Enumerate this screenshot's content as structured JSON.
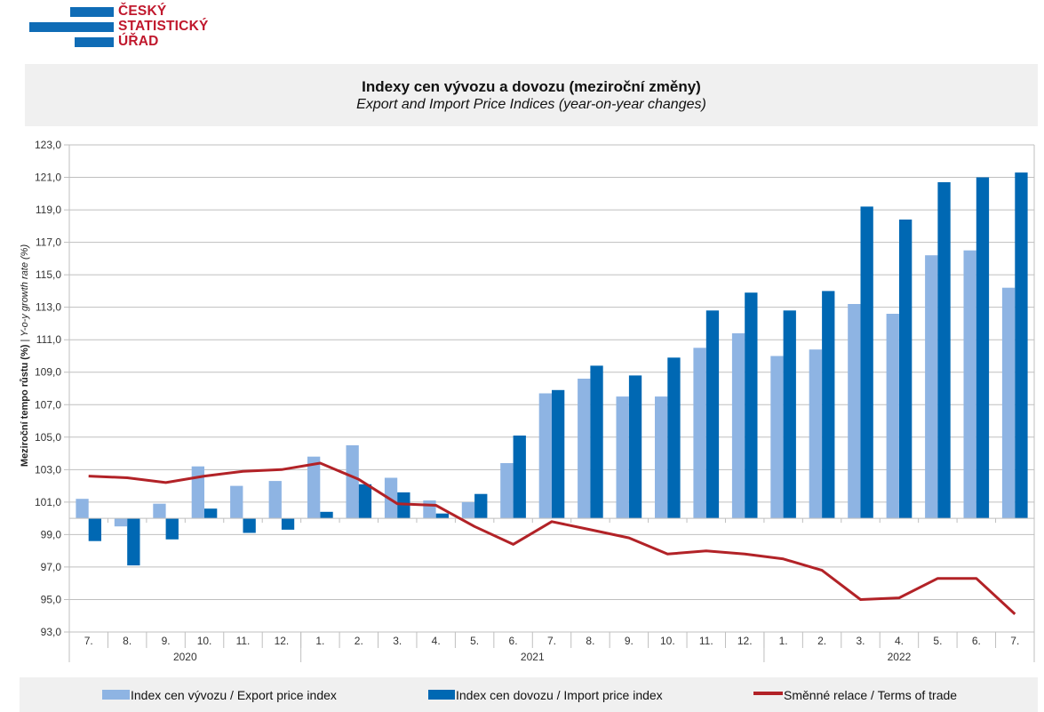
{
  "logo": {
    "lines": [
      "ČESKÝ",
      "STATISTICKÝ",
      "ÚŘAD"
    ],
    "bar_color": "#0f6cb6",
    "text_color": "#c0182d"
  },
  "header": {
    "title_cs": "Indexy cen vývozu a dovozu (meziroční změny)",
    "title_en": "Export and Import Price Indices (year-on-year changes)"
  },
  "legend": {
    "export": "Index cen vývozu / Export price index",
    "import": "Index cen dovozu / Import price index",
    "tot": "Směnné relace / Terms of trade"
  },
  "colors": {
    "export": "#8eb4e3",
    "import": "#0068b3",
    "tot": "#b22227",
    "grid": "#bfbfbf"
  },
  "chart_data": {
    "type": "bar",
    "title": "Indexy cen vývozu a dovozu (meziroční změny) / Export and Import Price Indices (year-on-year changes)",
    "xlabel": "",
    "ylabel_cs": "Meziroční tempo růstu (%)",
    "ylabel_en": "Y-o-y growth rate (%)",
    "ylim": [
      93.0,
      123.0
    ],
    "y_ticks": [
      "93,0",
      "95,0",
      "97,0",
      "99,0",
      "101,0",
      "103,0",
      "105,0",
      "107,0",
      "109,0",
      "111,0",
      "113,0",
      "115,0",
      "117,0",
      "119,0",
      "121,0",
      "123,0"
    ],
    "baseline": 100,
    "grid": true,
    "legend_position": "bottom",
    "categories": [
      "7.",
      "8.",
      "9.",
      "10.",
      "11.",
      "12.",
      "1.",
      "2.",
      "3.",
      "4.",
      "5.",
      "6.",
      "7.",
      "8.",
      "9.",
      "10.",
      "11.",
      "12.",
      "1.",
      "2.",
      "3.",
      "4.",
      "5.",
      "6.",
      "7."
    ],
    "year_groups": [
      {
        "label": "2020",
        "count": 6
      },
      {
        "label": "2021",
        "count": 12
      },
      {
        "label": "2022",
        "count": 7
      }
    ],
    "series": [
      {
        "name": "Index cen vývozu / Export price index",
        "kind": "bar",
        "values": [
          101.2,
          99.5,
          100.9,
          103.2,
          102.0,
          102.3,
          103.8,
          104.5,
          102.5,
          101.1,
          101.0,
          103.4,
          107.7,
          108.6,
          107.5,
          107.5,
          110.5,
          111.4,
          110.0,
          110.4,
          113.2,
          112.6,
          116.2,
          116.5,
          114.2
        ]
      },
      {
        "name": "Index cen dovozu / Import price index",
        "kind": "bar",
        "values": [
          98.6,
          97.1,
          98.7,
          100.6,
          99.1,
          99.3,
          100.4,
          102.1,
          101.6,
          100.3,
          101.5,
          105.1,
          107.9,
          109.4,
          108.8,
          109.9,
          112.8,
          113.9,
          112.8,
          114.0,
          119.2,
          118.4,
          120.7,
          121.0,
          121.3
        ]
      },
      {
        "name": "Směnné relace / Terms of trade",
        "kind": "line",
        "values": [
          102.6,
          102.5,
          102.2,
          102.6,
          102.9,
          103.0,
          103.4,
          102.4,
          100.9,
          100.8,
          99.5,
          98.4,
          99.8,
          99.3,
          98.8,
          97.8,
          98.0,
          97.8,
          97.5,
          96.8,
          95.0,
          95.1,
          96.3,
          96.3,
          94.1
        ]
      }
    ]
  }
}
